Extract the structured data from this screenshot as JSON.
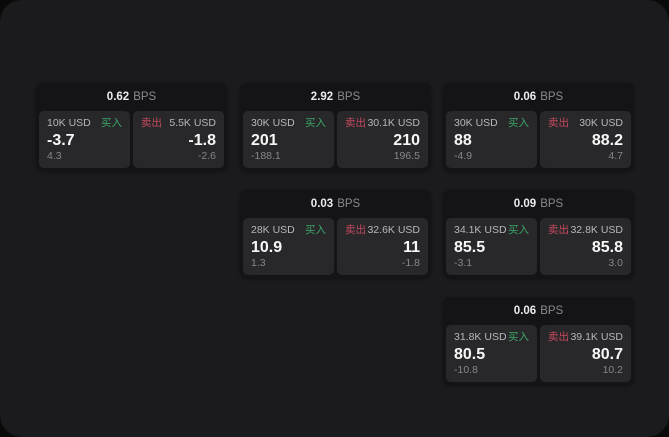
{
  "page": {
    "bps_unit": "BPS",
    "buy_label": "买入",
    "sell_label": "卖出"
  },
  "colors": {
    "buy_green": "#3da568",
    "sell_red": "#c5495e",
    "panel_bg": "#1b1b1d",
    "card_bg": "#141416",
    "tile_bg": "#28282a"
  },
  "cards": [
    {
      "bps_value": "0.62",
      "buy": {
        "size": "10K USD",
        "price": "-3.7",
        "delta": "4.3"
      },
      "sell": {
        "size": "5.5K USD",
        "price": "-1.8",
        "delta": "-2.6"
      }
    },
    {
      "bps_value": "2.92",
      "buy": {
        "size": "30K USD",
        "price": "201",
        "delta": "-188.1"
      },
      "sell": {
        "size": "30.1K USD",
        "price": "210",
        "delta": "196.5"
      }
    },
    {
      "bps_value": "0.06",
      "buy": {
        "size": "30K USD",
        "price": "88",
        "delta": "-4.9"
      },
      "sell": {
        "size": "30K USD",
        "price": "88.2",
        "delta": "4.7"
      }
    },
    {
      "bps_value": "0.03",
      "buy": {
        "size": "28K USD",
        "price": "10.9",
        "delta": "1.3"
      },
      "sell": {
        "size": "32.6K USD",
        "price": "11",
        "delta": "-1.8"
      }
    },
    {
      "bps_value": "0.09",
      "buy": {
        "size": "34.1K USD",
        "price": "85.5",
        "delta": "-3.1"
      },
      "sell": {
        "size": "32.8K USD",
        "price": "85.8",
        "delta": "3.0"
      }
    },
    {
      "bps_value": "0.06",
      "buy": {
        "size": "31.8K USD",
        "price": "80.5",
        "delta": "-10.8"
      },
      "sell": {
        "size": "39.1K USD",
        "price": "80.7",
        "delta": "10.2"
      }
    }
  ]
}
